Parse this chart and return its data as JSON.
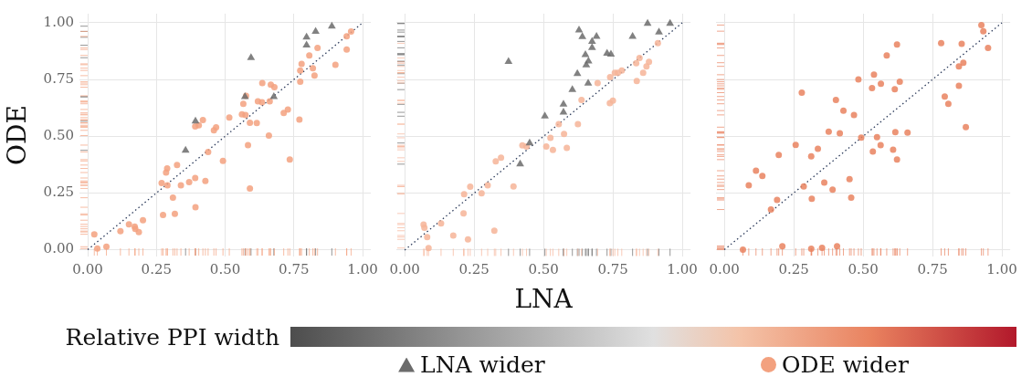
{
  "chart_data": [
    {
      "type": "scatter",
      "ylabel": "ODE",
      "legend": "bottom",
      "legend_title": "Relative PPI width",
      "grid": true,
      "xlim": [
        -0.03,
        1.03
      ],
      "ylim": [
        -0.03,
        1.04
      ],
      "xticks": [
        {
          "value": 0,
          "label": "0.00"
        },
        {
          "value": 0.25,
          "label": "0.25"
        },
        {
          "value": 0.5,
          "label": "0.50"
        },
        {
          "value": 0.75,
          "label": "0.75"
        },
        {
          "value": 1,
          "label": "1.00"
        }
      ],
      "yticks": [
        {
          "value": 0,
          "label": "0.00"
        },
        {
          "value": 0.25,
          "label": "0.25"
        },
        {
          "value": 0.5,
          "label": "0.50"
        },
        {
          "value": 0.75,
          "label": "0.75"
        },
        {
          "value": 1,
          "label": "1.00"
        }
      ],
      "series": [
        {
          "name": "LNA wider",
          "marker": "triangle",
          "color": "#6b6b6b",
          "x": [
            0.888,
            0.829,
            0.796,
            0.796,
            0.594,
            0.572,
            0.677,
            0.392,
            0.356
          ],
          "values": [
            0.985,
            0.962,
            0.936,
            0.901,
            0.846,
            0.674,
            0.674,
            0.566,
            0.438
          ]
        },
        {
          "name": "ODE wider",
          "marker": "circle",
          "color": "#f3a17f",
          "x": [
            0.958,
            0.942,
            0.836,
            0.942,
            0.806,
            0.901,
            0.778,
            0.773,
            0.819,
            0.825,
            0.773,
            0.635,
            0.666,
            0.679,
            0.576,
            0.566,
            0.619,
            0.634,
            0.662,
            0.561,
            0.574,
            0.728,
            0.713,
            0.59,
            0.615,
            0.77,
            0.515,
            0.419,
            0.404,
            0.391,
            0.467,
            0.459,
            0.659,
            0.583,
            0.438,
            0.492,
            0.735,
            0.289,
            0.285,
            0.325,
            0.269,
            0.29,
            0.339,
            0.369,
            0.391,
            0.428,
            0.59,
            0.31,
            0.274,
            0.317,
            0.392,
            0.201,
            0.15,
            0.171,
            0.173,
            0.186,
            0.119,
            0.024,
            0.035,
            0.068
          ],
          "values": [
            0.962,
            0.94,
            0.889,
            0.882,
            0.856,
            0.815,
            0.819,
            0.79,
            0.8,
            0.767,
            0.74,
            0.734,
            0.727,
            0.716,
            0.678,
            0.643,
            0.654,
            0.65,
            0.654,
            0.597,
            0.594,
            0.618,
            0.603,
            0.559,
            0.558,
            0.573,
            0.582,
            0.571,
            0.548,
            0.543,
            0.539,
            0.526,
            0.503,
            0.461,
            0.431,
            0.391,
            0.397,
            0.358,
            0.34,
            0.373,
            0.294,
            0.284,
            0.284,
            0.298,
            0.316,
            0.303,
            0.27,
            0.229,
            0.153,
            0.158,
            0.187,
            0.13,
            0.112,
            0.102,
            0.092,
            0.078,
            0.082,
            0.068,
            0.005,
            0.013
          ]
        },
        {
          "type": "line",
          "marker": "none",
          "line_style": "dotted",
          "color": "#2b3a5a",
          "x": [
            0,
            1
          ],
          "values": [
            0,
            1
          ]
        }
      ]
    },
    {
      "type": "scatter",
      "xlabel": "LNA",
      "grid": true,
      "tick_labels": "x",
      "xlim": [
        -0.03,
        1.03
      ],
      "ylim": [
        -0.03,
        1.04
      ],
      "xticks": [
        {
          "value": 0,
          "label": "0.00"
        },
        {
          "value": 0.25,
          "label": "0.25"
        },
        {
          "value": 0.5,
          "label": "0.50"
        },
        {
          "value": 0.75,
          "label": "0.75"
        },
        {
          "value": 1,
          "label": "1.00"
        }
      ],
      "yticks": [
        {
          "value": 0,
          "label": null
        },
        {
          "value": 0.25,
          "label": null
        },
        {
          "value": 0.5,
          "label": null
        },
        {
          "value": 0.75,
          "label": null
        },
        {
          "value": 1,
          "label": null
        }
      ],
      "series": [
        {
          "marker": "triangle",
          "color": "#6b6b6b",
          "x": [
            0.875,
            0.956,
            0.916,
            0.628,
            0.64,
            0.691,
            0.821,
            0.675,
            0.675,
            0.729,
            0.743,
            0.651,
            0.662,
            0.654,
            0.374,
            0.622,
            0.661,
            0.604,
            0.572,
            0.572,
            0.505,
            0.45,
            0.416
          ],
          "values": [
            0.997,
            0.997,
            0.959,
            0.968,
            0.939,
            0.94,
            0.94,
            0.918,
            0.89,
            0.865,
            0.861,
            0.859,
            0.831,
            0.814,
            0.829,
            0.776,
            0.734,
            0.706,
            0.641,
            0.606,
            0.589,
            0.471,
            0.378
          ]
        },
        {
          "marker": "circle",
          "color": "#f6b498",
          "x": [
            0.912,
            0.88,
            0.846,
            0.834,
            0.871,
            0.859,
            0.836,
            0.782,
            0.768,
            0.757,
            0.74,
            0.695,
            0.637,
            0.75,
            0.739,
            0.624,
            0.555,
            0.574,
            0.525,
            0.424,
            0.439,
            0.51,
            0.534,
            0.584,
            0.347,
            0.328,
            0.236,
            0.299,
            0.392,
            0.214,
            0.277,
            0.212,
            0.131,
            0.068,
            0.071,
            0.081,
            0.175,
            0.323,
            0.228,
            0.086
          ],
          "values": [
            0.91,
            0.828,
            0.845,
            0.822,
            0.808,
            0.78,
            0.744,
            0.79,
            0.78,
            0.78,
            0.761,
            0.735,
            0.66,
            0.657,
            0.646,
            0.554,
            0.554,
            0.511,
            0.494,
            0.461,
            0.456,
            0.456,
            0.441,
            0.45,
            0.406,
            0.39,
            0.279,
            0.285,
            0.28,
            0.246,
            0.25,
            0.161,
            0.117,
            0.112,
            0.098,
            0.057,
            0.064,
            0.085,
            0.047,
            0.009
          ]
        },
        {
          "type": "line",
          "marker": "none",
          "line_style": "dotted",
          "color": "#2b3a5a",
          "x": [
            0,
            1
          ],
          "values": [
            0,
            1
          ]
        }
      ]
    },
    {
      "type": "scatter",
      "grid": true,
      "tick_labels": "x",
      "xlim": [
        -0.03,
        1.03
      ],
      "ylim": [
        -0.03,
        1.04
      ],
      "xticks": [
        {
          "value": 0,
          "label": "0.00"
        },
        {
          "value": 0.25,
          "label": "0.25"
        },
        {
          "value": 0.5,
          "label": "0.50"
        },
        {
          "value": 0.75,
          "label": "0.75"
        },
        {
          "value": 1,
          "label": "1.00"
        }
      ],
      "yticks": [
        {
          "value": 0,
          "label": null
        },
        {
          "value": 0.25,
          "label": null
        },
        {
          "value": 0.5,
          "label": null
        },
        {
          "value": 0.75,
          "label": null
        },
        {
          "value": 1,
          "label": null
        }
      ],
      "series": [
        {
          "marker": "circle",
          "color": "#e9825f",
          "x": [
            0.926,
            0.933,
            0.95,
            0.781,
            0.855,
            0.622,
            0.585,
            0.861,
            0.845,
            0.539,
            0.483,
            0.564,
            0.632,
            0.532,
            0.614,
            0.845,
            0.279,
            0.794,
            0.807,
            0.402,
            0.429,
            0.467,
            0.87,
            0.376,
            0.416,
            0.616,
            0.66,
            0.493,
            0.55,
            0.257,
            0.337,
            0.563,
            0.196,
            0.313,
            0.535,
            0.608,
            0.622,
            0.114,
            0.137,
            0.088,
            0.286,
            0.36,
            0.39,
            0.451,
            0.457,
            0.19,
            0.315,
            0.168,
            0.209,
            0.313,
            0.352,
            0.406,
            0.067
          ],
          "values": [
            0.99,
            0.963,
            0.889,
            0.91,
            0.907,
            0.904,
            0.856,
            0.824,
            0.808,
            0.771,
            0.75,
            0.731,
            0.74,
            0.712,
            0.707,
            0.722,
            0.692,
            0.675,
            0.643,
            0.66,
            0.613,
            0.594,
            0.54,
            0.52,
            0.513,
            0.518,
            0.516,
            0.494,
            0.496,
            0.462,
            0.445,
            0.461,
            0.418,
            0.411,
            0.433,
            0.441,
            0.397,
            0.348,
            0.325,
            0.284,
            0.279,
            0.296,
            0.265,
            0.311,
            0.229,
            0.219,
            0.224,
            0.177,
            0.015,
            0.004,
            0.008,
            0.015,
            0.0
          ]
        },
        {
          "type": "line",
          "marker": "none",
          "line_style": "dotted",
          "color": "#2b3a5a",
          "x": [
            0,
            1
          ],
          "values": [
            0,
            1
          ]
        }
      ]
    }
  ]
}
